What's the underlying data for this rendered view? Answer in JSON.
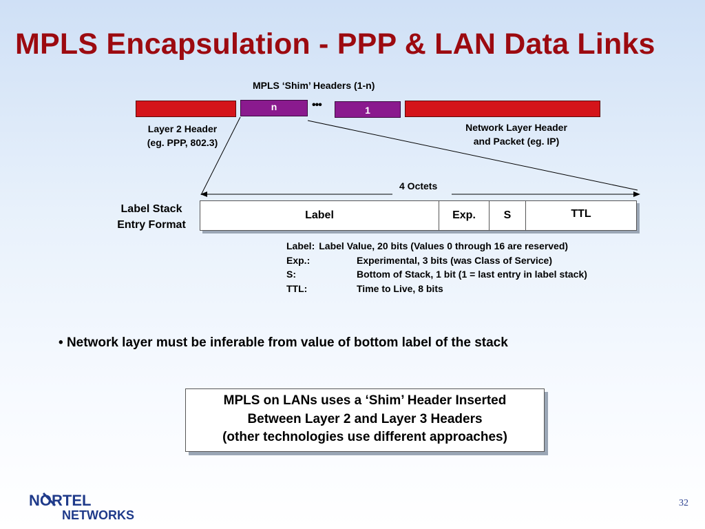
{
  "slide": {
    "title": "MPLS Encapsulation - PPP & LAN Data Links",
    "page_number": "32"
  },
  "frame": {
    "shim_caption": "MPLS ‘Shim’ Headers (1-n)",
    "shim_first_label": "n",
    "ellipsis": "•••",
    "shim_last_label": "1",
    "layer2_caption_line1": "Layer 2 Header",
    "layer2_caption_line2": "(eg. PPP, 802.3)",
    "network_caption_line1": "Network Layer Header",
    "network_caption_line2": "and Packet (eg. IP)",
    "colors": {
      "header_bar": "#d4141a",
      "shim_bar": "#8a1a8e",
      "title": "#9c0a10"
    }
  },
  "entry_format": {
    "width_label": "4 Octets",
    "side_label_line1": "Label Stack",
    "side_label_line2": "Entry Format",
    "fields": {
      "label": "Label",
      "exp": "Exp.",
      "s": "S",
      "ttl": "TTL"
    }
  },
  "legend": [
    {
      "key": "Label:",
      "desc": "Label Value, 20 bits  (Values 0 through 16 are reserved)"
    },
    {
      "key": "Exp.:",
      "desc": "Experimental, 3 bits (was Class of Service)"
    },
    {
      "key": "S:",
      "desc": "Bottom of Stack,  1 bit   (1 = last entry in label stack)"
    },
    {
      "key": "TTL:",
      "desc": "Time to Live, 8 bits"
    }
  ],
  "bullet": "Network layer must be inferable from value of bottom label of the stack",
  "note": {
    "line1": "MPLS on LANs uses a ‘Shim’ Header Inserted",
    "line2": "Between Layer 2 and Layer 3 Headers",
    "line3": "(other technologies use different approaches)"
  },
  "logo": {
    "line1": "NORTEL",
    "line2": "NETWORKS"
  }
}
